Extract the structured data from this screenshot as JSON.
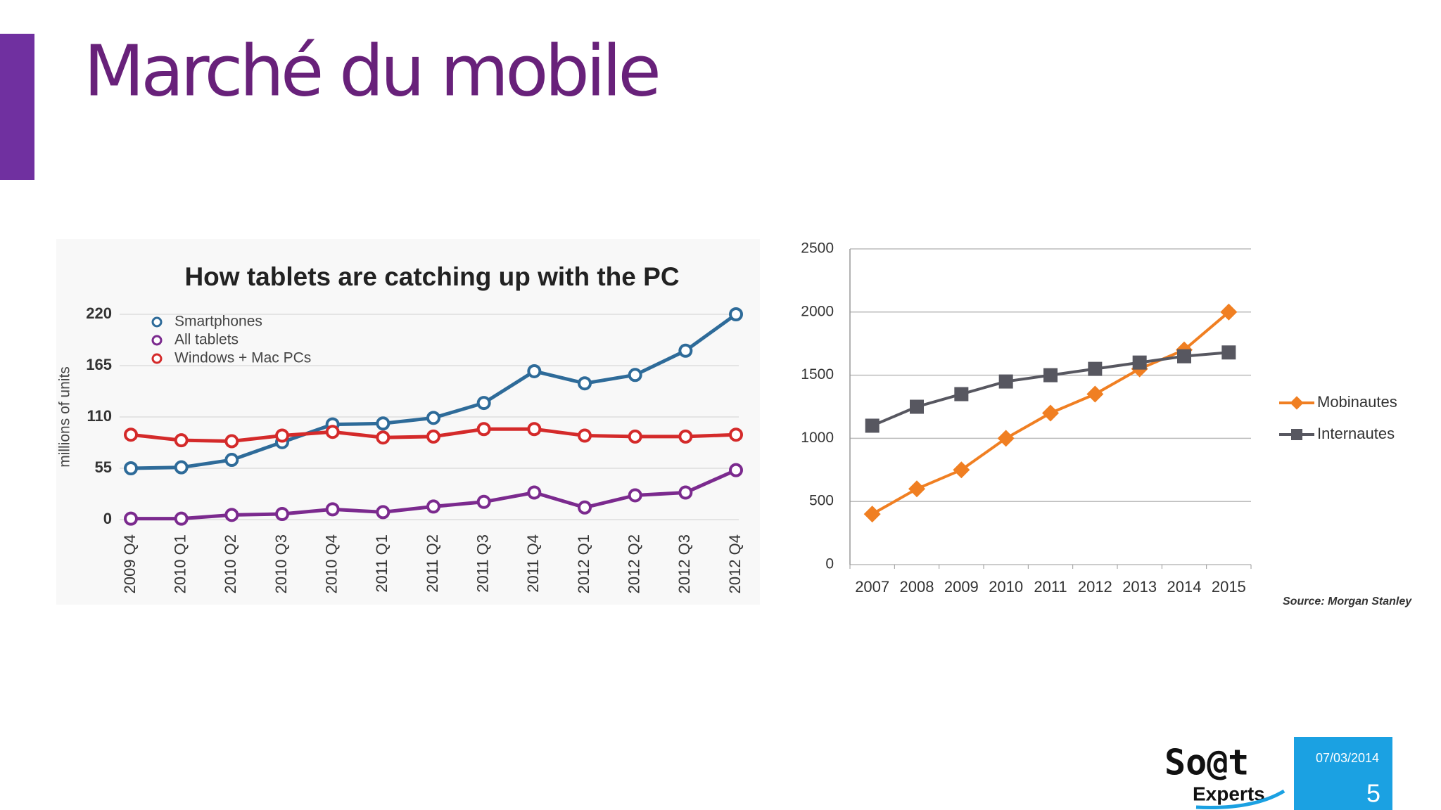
{
  "slide": {
    "title": "Marché du mobile",
    "date": "07/03/2014",
    "page": "5",
    "logo": "So@t",
    "logo_sub": "Experts"
  },
  "chart_data": [
    {
      "type": "line",
      "title": "How tablets are catching up with the PC",
      "y_label": "millions of units",
      "categories": [
        "2009 Q4",
        "2010 Q1",
        "2010 Q2",
        "2010 Q3",
        "2010 Q4",
        "2011 Q1",
        "2011 Q2",
        "2011 Q3",
        "2011 Q4",
        "2012 Q1",
        "2012 Q2",
        "2012 Q3",
        "2012 Q4"
      ],
      "series": [
        {
          "name": "Smartphones",
          "color": "#2e6b99",
          "marker": "circle",
          "values": [
            55,
            56,
            64,
            83,
            102,
            103,
            109,
            125,
            159,
            146,
            155,
            181,
            220
          ]
        },
        {
          "name": "All tablets",
          "color": "#7b2a8e",
          "marker": "circle",
          "values": [
            1,
            1,
            5,
            6,
            11,
            8,
            14,
            19,
            29,
            13,
            26,
            29,
            53
          ]
        },
        {
          "name": "Windows + Mac PCs",
          "color": "#d42a2a",
          "marker": "circle",
          "values": [
            91,
            85,
            84,
            90,
            94,
            88,
            89,
            97,
            97,
            90,
            89,
            89,
            91
          ]
        }
      ],
      "ylim": [
        0,
        220
      ],
      "yticks": [
        0,
        55,
        110,
        165,
        220
      ],
      "grid": true,
      "legend": "upper left"
    },
    {
      "type": "line",
      "source": "Source: Morgan Stanley",
      "categories": [
        "2007",
        "2008",
        "2009",
        "2010",
        "2011",
        "2012",
        "2013",
        "2014",
        "2015"
      ],
      "series": [
        {
          "name": "Mobinautes",
          "color": "#f07f22",
          "marker": "diamond",
          "values": [
            400,
            600,
            750,
            1000,
            1200,
            1350,
            1550,
            1700,
            2000
          ]
        },
        {
          "name": "Internautes",
          "color": "#575760",
          "marker": "square",
          "values": [
            1100,
            1250,
            1350,
            1450,
            1500,
            1550,
            1600,
            1650,
            1680
          ]
        }
      ],
      "ylim": [
        0,
        2500
      ],
      "yticks": [
        0,
        500,
        1000,
        1500,
        2000,
        2500
      ],
      "grid": true,
      "legend": "right"
    }
  ]
}
